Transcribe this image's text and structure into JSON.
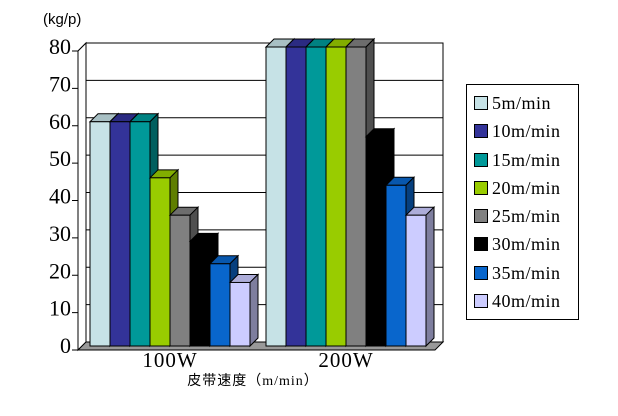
{
  "unit_label": "(kg/p)",
  "chart_data": {
    "type": "bar",
    "style": "3d-column",
    "title": "",
    "xlabel": "皮带速度（m/min）",
    "ylabel": "(kg/p)",
    "categories": [
      "100W",
      "200W"
    ],
    "series": [
      {
        "name": "5m/min",
        "color": "#C6E2E6",
        "values": [
          60,
          80
        ]
      },
      {
        "name": "10m/min",
        "color": "#333399",
        "values": [
          60,
          80
        ]
      },
      {
        "name": "15m/min",
        "color": "#009999",
        "values": [
          60,
          80
        ]
      },
      {
        "name": "20m/min",
        "color": "#99CC00",
        "values": [
          45,
          80
        ]
      },
      {
        "name": "25m/min",
        "color": "#808080",
        "values": [
          35,
          80
        ]
      },
      {
        "name": "30m/min",
        "color": "#000000",
        "values": [
          28,
          56
        ]
      },
      {
        "name": "35m/min",
        "color": "#0966CC",
        "values": [
          22,
          43
        ]
      },
      {
        "name": "40m/min",
        "color": "#CCCCFF",
        "values": [
          17,
          35
        ]
      }
    ],
    "ylim": [
      0,
      80
    ],
    "yticks": [
      0,
      10,
      20,
      30,
      40,
      50,
      60,
      70,
      80
    ],
    "grid": true,
    "legend_position": "right"
  }
}
